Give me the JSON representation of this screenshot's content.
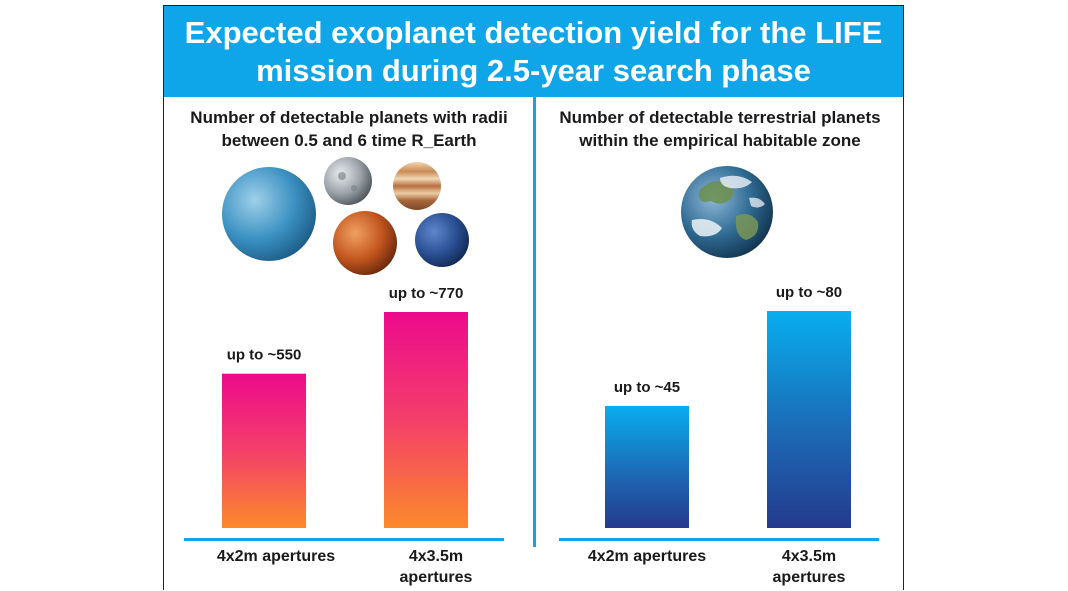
{
  "header": {
    "title": "Expected exoplanet detection yield for the LIFE mission during 2.5-year search phase"
  },
  "icons": {
    "left": "planets-cluster-icon",
    "right": "earth-globe-icon"
  },
  "colors": {
    "header_bg": "#0ea5e9",
    "pink_top": "#ec0a8c",
    "pink_bottom": "#fb8a2a",
    "blue_top": "#08aeef",
    "blue_bottom": "#253a8e"
  },
  "chart_data": [
    {
      "type": "bar",
      "title": "Number of detectable planets with radii between 0.5 and 6 time R_Earth",
      "categories": [
        "4x2m apertures",
        "4x3.5m apertures"
      ],
      "values": [
        550,
        770
      ],
      "data_labels": [
        "up to ~550",
        "up to ~770"
      ],
      "xlabel": "",
      "ylabel": "",
      "grid": false
    },
    {
      "type": "bar",
      "title": "Number of detectable terrestrial planets within the empirical habitable zone",
      "categories": [
        "4x2m apertures",
        "4x3.5m apertures"
      ],
      "values": [
        45,
        80
      ],
      "data_labels": [
        "up to ~45",
        "up to ~80"
      ],
      "xlabel": "",
      "ylabel": "",
      "grid": false
    }
  ]
}
